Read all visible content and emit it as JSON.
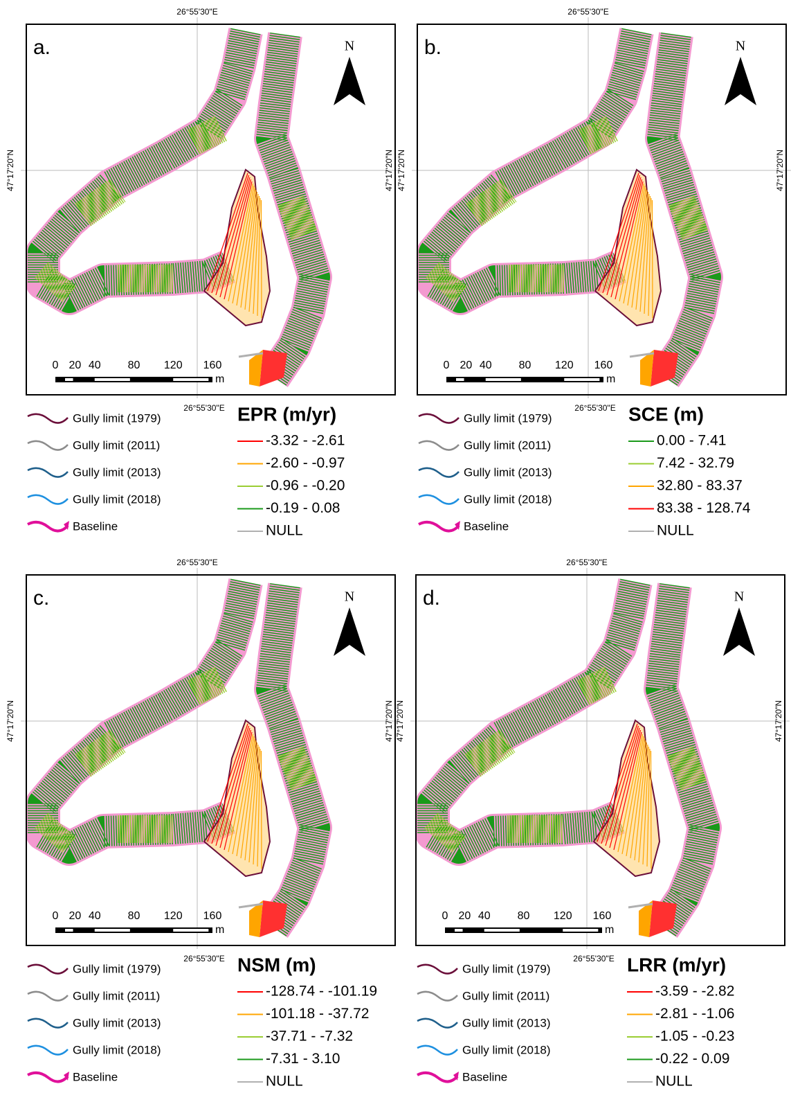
{
  "panels": [
    {
      "label": "a.",
      "north": "N",
      "coord_top": "26°55'30\"E",
      "coord_bottom": "26°55'30\"E",
      "coord_left": "47°17'20\"N",
      "coord_right": "47°17'20\"N",
      "scale_ticks": [
        0,
        20,
        40,
        80,
        120,
        160
      ],
      "scale_unit": "m",
      "legend_lines": [
        {
          "label": "Gully limit (1979)",
          "color": "#6b0f3a"
        },
        {
          "label": "Gully limit (2011)",
          "color": "#8c8c8c"
        },
        {
          "label": "Gully limit (2013)",
          "color": "#1f5f8b"
        },
        {
          "label": "Gully limit (2018)",
          "color": "#1e90e0"
        },
        {
          "label": "Baseline",
          "color": "#e0109a"
        }
      ],
      "legend_title": "EPR (m/yr)",
      "classes": [
        {
          "label": "-3.32 - -2.61",
          "color": "#ff0000"
        },
        {
          "label": "-2.60 - -0.97",
          "color": "#ffa500"
        },
        {
          "label": "-0.96 - -0.20",
          "color": "#9acd32"
        },
        {
          "label": "-0.19 - 0.08",
          "color": "#1a9a1a"
        },
        {
          "label": "NULL",
          "color": "#b0b0b0"
        }
      ]
    },
    {
      "label": "b.",
      "north": "N",
      "coord_top": "26°55'30\"E",
      "coord_bottom": "26°55'30\"E",
      "coord_left": "47°17'20\"N",
      "coord_right": "47°17'20\"N",
      "scale_ticks": [
        0,
        20,
        40,
        80,
        120,
        160
      ],
      "scale_unit": "m",
      "legend_lines": [
        {
          "label": "Gully limit (1979)",
          "color": "#6b0f3a"
        },
        {
          "label": "Gully limit (2011)",
          "color": "#8c8c8c"
        },
        {
          "label": "Gully limit (2013)",
          "color": "#1f5f8b"
        },
        {
          "label": "Gully limit (2018)",
          "color": "#1e90e0"
        },
        {
          "label": "Baseline",
          "color": "#e0109a"
        }
      ],
      "legend_title": "SCE (m)",
      "classes": [
        {
          "label": "0.00 - 7.41",
          "color": "#1a9a1a"
        },
        {
          "label": "7.42 - 32.79",
          "color": "#9acd32"
        },
        {
          "label": "32.80 - 83.37",
          "color": "#ffa500"
        },
        {
          "label": "83.38 - 128.74",
          "color": "#ff0000"
        },
        {
          "label": "NULL",
          "color": "#b0b0b0"
        }
      ]
    },
    {
      "label": "c.",
      "north": "N",
      "coord_top": "26°55'30\"E",
      "coord_bottom": "26°55'30\"E",
      "coord_left": "47°17'20\"N",
      "coord_right": "47°17'20\"N",
      "scale_ticks": [
        0,
        20,
        40,
        80,
        120,
        160
      ],
      "scale_unit": "m",
      "legend_lines": [
        {
          "label": "Gully limit (1979)",
          "color": "#6b0f3a"
        },
        {
          "label": "Gully limit (2011)",
          "color": "#8c8c8c"
        },
        {
          "label": "Gully limit (2013)",
          "color": "#1f5f8b"
        },
        {
          "label": "Gully limit (2018)",
          "color": "#1e90e0"
        },
        {
          "label": "Baseline",
          "color": "#e0109a"
        }
      ],
      "legend_title": "NSM (m)",
      "classes": [
        {
          "label": "-128.74 - -101.19",
          "color": "#ff0000"
        },
        {
          "label": "-101.18 - -37.72",
          "color": "#ffa500"
        },
        {
          "label": "-37.71 - -7.32",
          "color": "#9acd32"
        },
        {
          "label": "-7.31 - 3.10",
          "color": "#1a9a1a"
        },
        {
          "label": "NULL",
          "color": "#b0b0b0"
        }
      ]
    },
    {
      "label": "d.",
      "north": "N",
      "coord_top": "26°55'30\"E",
      "coord_bottom": "26°55'30\"E",
      "coord_left": "47°17'20\"N",
      "coord_right": "47°17'20\"N",
      "scale_ticks": [
        0,
        20,
        40,
        80,
        120,
        160
      ],
      "scale_unit": "m",
      "legend_lines": [
        {
          "label": "Gully limit (1979)",
          "color": "#6b0f3a"
        },
        {
          "label": "Gully limit (2011)",
          "color": "#8c8c8c"
        },
        {
          "label": "Gully limit (2013)",
          "color": "#1f5f8b"
        },
        {
          "label": "Gully limit (2018)",
          "color": "#1e90e0"
        },
        {
          "label": "Baseline",
          "color": "#e0109a"
        }
      ],
      "legend_title": "LRR (m/yr)",
      "classes": [
        {
          "label": "-3.59 - -2.82",
          "color": "#ff0000"
        },
        {
          "label": "-2.81 - -1.06",
          "color": "#ffa500"
        },
        {
          "label": "-1.05 - -0.23",
          "color": "#9acd32"
        },
        {
          "label": "-0.22 - 0.09",
          "color": "#1a9a1a"
        },
        {
          "label": "NULL",
          "color": "#b0b0b0"
        }
      ]
    }
  ]
}
